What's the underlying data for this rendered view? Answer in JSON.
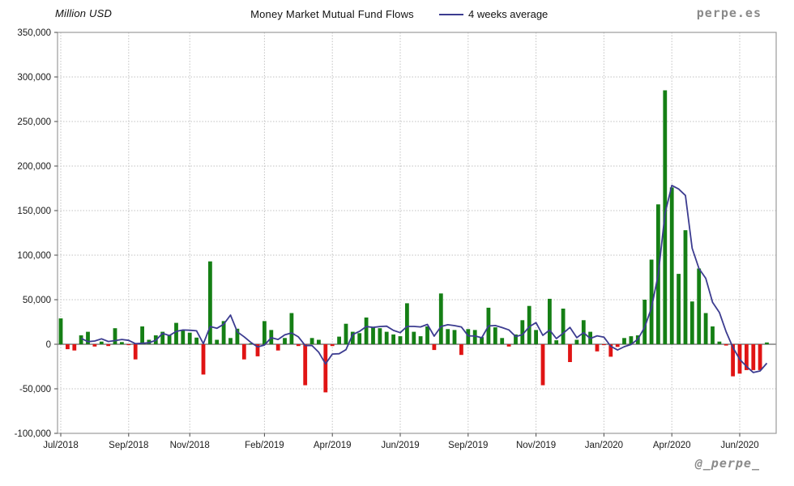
{
  "header": {
    "y_axis_title": "Million USD",
    "title": "Money Market Mutual Fund Flows",
    "legend_label": "4 weeks average",
    "watermark_top": "perpe.es",
    "watermark_bottom": "@_perpe_"
  },
  "chart_data": {
    "type": "bar",
    "title": "Money Market Mutual Fund Flows",
    "ylabel": "Million USD",
    "y_unit": "Million USD",
    "ylim": [
      -100000,
      350000
    ],
    "y_tick_step": 50000,
    "grid": true,
    "legend_position": "top",
    "x_unit": "week",
    "x_range": "Jul/2018 - Jun/2020",
    "x_tick_labels": [
      "Jul/2018",
      "Sep/2018",
      "Nov/2018",
      "Feb/2019",
      "Apr/2019",
      "Jun/2019",
      "Sep/2019",
      "Nov/2019",
      "Jan/2020",
      "Apr/2020",
      "Jun/2020"
    ],
    "x_tick_week_index": [
      0,
      10,
      19,
      30,
      40,
      50,
      60,
      70,
      80,
      90,
      100
    ],
    "series": [
      {
        "name": "Weekly fund flows",
        "type": "bar",
        "color_positive": "#157f15",
        "color_negative": "#e01414",
        "values": [
          29000,
          -5500,
          -7000,
          10000,
          14000,
          -2500,
          3000,
          -2000,
          18000,
          2500,
          -1000,
          -17000,
          20000,
          5000,
          10000,
          14000,
          10000,
          24000,
          16000,
          13000,
          7500,
          -34000,
          93000,
          5000,
          26000,
          7000,
          17500,
          -17000,
          1000,
          -13500,
          26000,
          16000,
          -7000,
          7000,
          35000,
          -2000,
          -46000,
          7000,
          5000,
          -54000,
          -2000,
          8500,
          23000,
          14000,
          12500,
          30000,
          19000,
          18000,
          14000,
          11000,
          9000,
          46000,
          14000,
          9000,
          20000,
          -6500,
          57000,
          17000,
          16000,
          -12000,
          17000,
          16000,
          8000,
          41000,
          19000,
          7000,
          -2500,
          11000,
          27000,
          43000,
          16000,
          -46000,
          51000,
          4500,
          40000,
          -20000,
          5000,
          27000,
          14000,
          -8000,
          -1000,
          -14000,
          -3000,
          7000,
          9000,
          10000,
          50000,
          95000,
          157000,
          285000,
          176000,
          79000,
          128000,
          48000,
          85000,
          35000,
          20000,
          3000,
          -1500,
          -36000,
          -33000,
          -29000,
          -29000,
          -29000,
          2000
        ]
      },
      {
        "name": "4 weeks average",
        "type": "line",
        "color": "#3c3c90",
        "derived_from": "Weekly fund flows",
        "window": 4
      }
    ],
    "colors": {
      "grid": "#c2c2c2",
      "zero_axis": "#3d3d3d",
      "border": "#9b9b9b",
      "tick": "#4a4a4a",
      "text": "#1a1a1a",
      "watermark": "#8a8a8a"
    }
  }
}
